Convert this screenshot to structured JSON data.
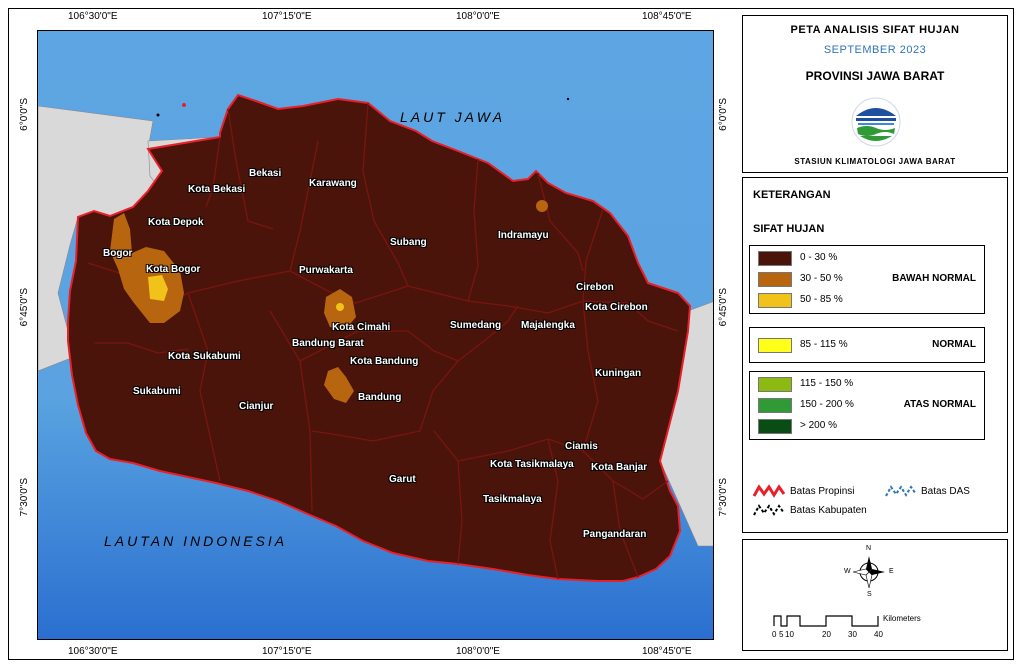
{
  "map": {
    "coords_top": [
      "106°30'0\"E",
      "107°15'0\"E",
      "108°0'0\"E",
      "108°45'0\"E"
    ],
    "coords_bottom": [
      "106°30'0\"E",
      "107°15'0\"E",
      "108°0'0\"E",
      "108°45'0\"E"
    ],
    "coords_left": [
      "6°0'0\"S",
      "6°45'0\"S",
      "7°30'0\"S"
    ],
    "coords_right": [
      "6°0'0\"S",
      "6°45'0\"S",
      "7°30'0\"S"
    ],
    "seas": {
      "north": "LAUT JAWA",
      "south": "LAUTAN INDONESIA"
    },
    "regions": [
      "Bekasi",
      "Kota Bekasi",
      "Karawang",
      "Kota Depok",
      "Bogor",
      "Kota Bogor",
      "Purwakarta",
      "Subang",
      "Indramayu",
      "Cirebon",
      "Kota Cirebon",
      "Kota Cimahi",
      "Sumedang",
      "Majalengka",
      "Bandung Barat",
      "Kota Bandung",
      "Kota Sukabumi",
      "Kuningan",
      "Sukabumi",
      "Bandung",
      "Cianjur",
      "Ciamis",
      "Kota Tasikmalaya",
      "Kota Banjar",
      "Garut",
      "Tasikmalaya",
      "Pangandaran"
    ],
    "colors": {
      "sea_light": "#5aa3e0",
      "sea_dark": "#2a6fd0",
      "land_outside": "#d9d9d9",
      "province_border": "#e8202a",
      "bawah_0_30": "#4a140a",
      "bawah_30_50": "#b8650f",
      "bawah_50_85": "#f0c21a"
    }
  },
  "title": {
    "line1": "PETA ANALISIS SIFAT HUJAN",
    "line2": "SEPTEMBER 2023",
    "line3": "PROVINSI JAWA BARAT",
    "line4": "STASIUN KLIMATOLOGI JAWA BARAT",
    "logo_icon": "bmkg-logo-icon"
  },
  "legend": {
    "header": "KETERANGAN",
    "subheader": "SIFAT HUJAN",
    "groups": [
      {
        "name": "BAWAH NORMAL",
        "items": [
          {
            "label": "0 - 30 %",
            "color": "#4a140a"
          },
          {
            "label": "30 - 50 %",
            "color": "#b8650f"
          },
          {
            "label": "50 - 85 %",
            "color": "#f0c21a"
          }
        ]
      },
      {
        "name": "NORMAL",
        "items": [
          {
            "label": "85 - 115 %",
            "color": "#ffff1a"
          }
        ]
      },
      {
        "name": "ATAS NORMAL",
        "items": [
          {
            "label": "115 - 150 %",
            "color": "#8cba12"
          },
          {
            "label": "150 - 200 %",
            "color": "#2f9a36"
          },
          {
            "label": ">  200 %",
            "color": "#0a4d14"
          }
        ]
      }
    ],
    "boundaries": {
      "propinsi": "Batas Propinsi",
      "das": "Batas DAS",
      "kabupaten": "Batas Kabupaten"
    }
  },
  "scale": {
    "north_label": "N",
    "south_label": "S",
    "west_label": "W",
    "east_label": "E",
    "ticks": [
      "0",
      "5",
      "10",
      "20",
      "30",
      "40"
    ],
    "unit": "Kilometers"
  }
}
